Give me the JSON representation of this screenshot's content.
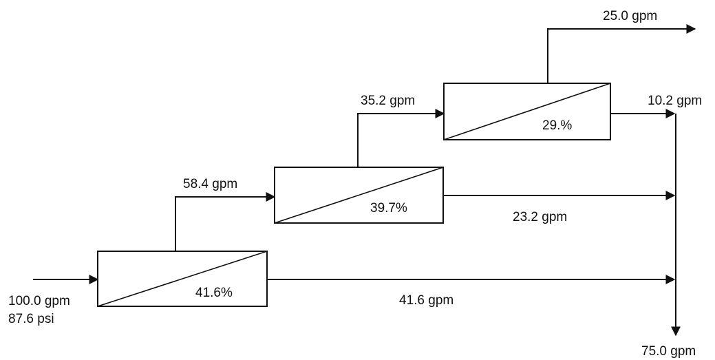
{
  "feed": {
    "flow": "100.0 gpm",
    "pressure": "87.6 psi"
  },
  "stages": [
    {
      "recovery": "41.6%",
      "permeate": "41.6 gpm",
      "concentrate": "58.4 gpm"
    },
    {
      "recovery": "39.7%",
      "permeate": "23.2 gpm",
      "concentrate": "35.2 gpm"
    },
    {
      "recovery": "29.%",
      "permeate": "10.2 gpm",
      "concentrate": "25.0 gpm"
    }
  ],
  "total_permeate": "75.0 gpm",
  "colors": {
    "line": "#111111",
    "background": "#ffffff"
  }
}
